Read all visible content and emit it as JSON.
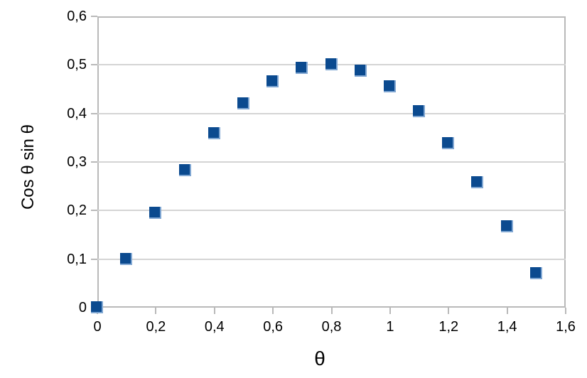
{
  "chart_data": {
    "type": "scatter",
    "title": "",
    "xlabel": "θ",
    "ylabel": "Cos θ sin θ",
    "x": [
      0,
      0.1,
      0.2,
      0.3,
      0.4,
      0.5,
      0.6,
      0.7,
      0.8,
      0.9,
      1.0,
      1.1,
      1.2,
      1.3,
      1.4,
      1.5
    ],
    "y": [
      0,
      0.0993,
      0.1947,
      0.2823,
      0.3587,
      0.4207,
      0.466,
      0.4927,
      0.4998,
      0.487,
      0.4546,
      0.4042,
      0.3387,
      0.2577,
      0.1675,
      0.0706
    ],
    "xlim": [
      0,
      1.6
    ],
    "ylim": [
      0,
      0.6
    ],
    "x_ticks": [
      0,
      0.2,
      0.4,
      0.6,
      0.8,
      1.0,
      1.2,
      1.4,
      1.6
    ],
    "x_tick_labels": [
      "0",
      "0,2",
      "0,4",
      "0,6",
      "0,8",
      "1",
      "1,2",
      "1,4",
      "1,6"
    ],
    "y_ticks": [
      0,
      0.1,
      0.2,
      0.3,
      0.4,
      0.5,
      0.6
    ],
    "y_tick_labels": [
      "0",
      "0,1",
      "0,2",
      "0,3",
      "0,4",
      "0,5",
      "0,6"
    ],
    "grid": "horizontal-only",
    "legend": "none",
    "marker": {
      "shape": "square",
      "color": "#0b4a8f",
      "highlight_color": "#7fa6d2"
    },
    "colors": {
      "axis": "#b9b9b9",
      "gridline": "#d4d4d4",
      "text": "#000000",
      "background": "#ffffff"
    }
  }
}
